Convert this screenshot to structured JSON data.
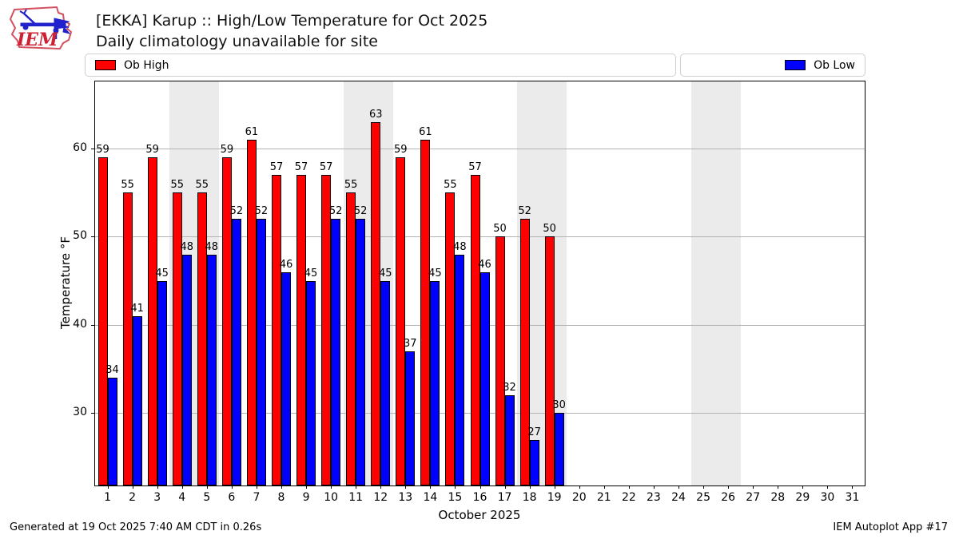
{
  "header": {
    "title_line1": "[EKKA] Karup :: High/Low Temperature for Oct 2025",
    "title_line2": "Daily climatology unavailable for site"
  },
  "legend": {
    "high_label": "Ob High",
    "low_label": "Ob Low"
  },
  "colors": {
    "high": "#ff0000",
    "low": "#0000ff",
    "weekend_band": "#ebebeb",
    "gridline": "#b3b3b3",
    "logo_red": "#cc2233",
    "logo_blue": "#2222cc"
  },
  "chart_data": {
    "type": "bar",
    "title": "[EKKA] Karup :: High/Low Temperature for Oct 2025",
    "subtitle": "Daily climatology unavailable for site",
    "xlabel": "October 2025",
    "ylabel": "Temperature °F",
    "ylim": [
      21.8,
      67.6
    ],
    "yticks": [
      30,
      40,
      50,
      60
    ],
    "grid": true,
    "legend_position": "top",
    "days": [
      1,
      2,
      3,
      4,
      5,
      6,
      7,
      8,
      9,
      10,
      11,
      12,
      13,
      14,
      15,
      16,
      17,
      18,
      19,
      20,
      21,
      22,
      23,
      24,
      25,
      26,
      27,
      28,
      29,
      30,
      31
    ],
    "weekend_start_days": [
      4,
      11,
      18,
      25
    ],
    "series": [
      {
        "name": "Ob High",
        "values": [
          59,
          55,
          59,
          55,
          55,
          59,
          61,
          57,
          57,
          57,
          55,
          63,
          59,
          61,
          55,
          57,
          50,
          52,
          50,
          null,
          null,
          null,
          null,
          null,
          null,
          null,
          null,
          null,
          null,
          null,
          null
        ]
      },
      {
        "name": "Ob Low",
        "values": [
          34,
          41,
          45,
          48,
          48,
          52,
          52,
          46,
          45,
          52,
          52,
          45,
          37,
          45,
          48,
          46,
          32,
          27,
          30,
          null,
          null,
          null,
          null,
          null,
          null,
          null,
          null,
          null,
          null,
          null,
          null
        ]
      }
    ]
  },
  "footer": {
    "left": "Generated at 19 Oct 2025 7:40 AM CDT in 0.26s",
    "right": "IEM Autoplot App #17"
  }
}
